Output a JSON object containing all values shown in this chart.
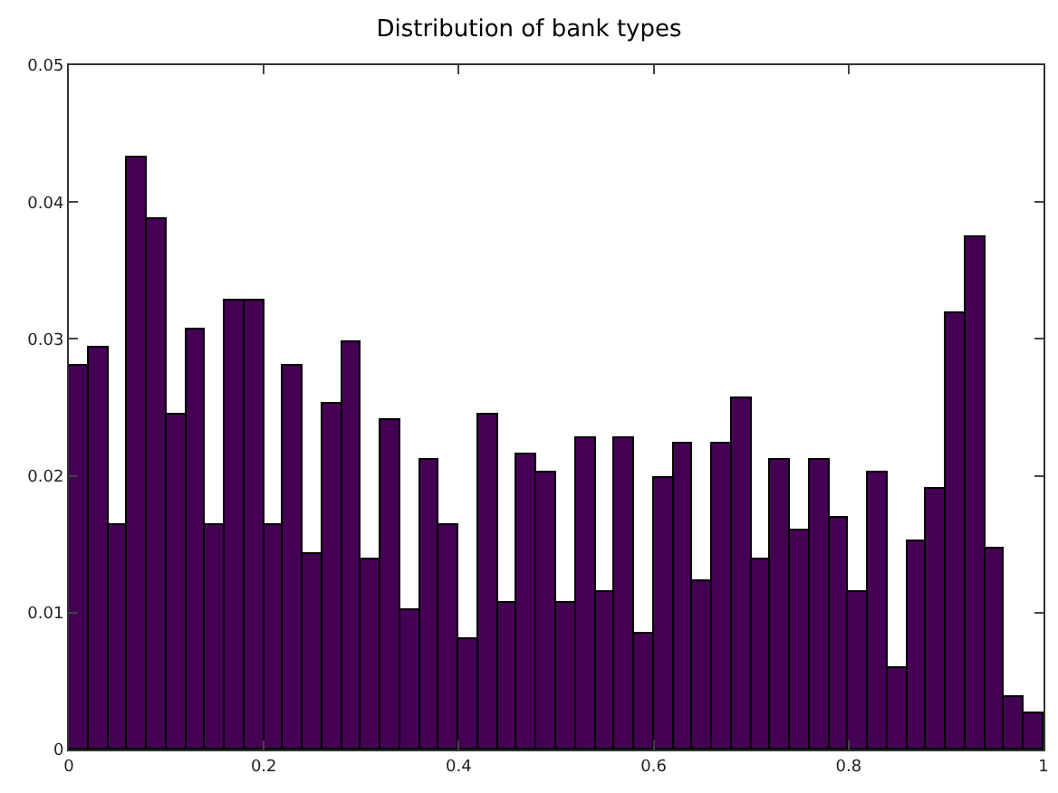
{
  "chart_data": {
    "type": "histogram",
    "title": "Distribution of bank types",
    "bins": [
      0,
      0.02,
      0.04,
      0.06,
      0.08,
      0.1,
      0.12,
      0.14,
      0.16,
      0.18,
      0.2,
      0.22,
      0.24,
      0.26,
      0.28,
      0.3,
      0.32,
      0.34,
      0.36,
      0.38,
      0.4,
      0.42,
      0.44,
      0.46,
      0.48,
      0.5,
      0.52,
      0.54,
      0.56,
      0.58,
      0.6,
      0.62,
      0.64,
      0.66,
      0.68,
      0.7,
      0.72,
      0.74,
      0.76,
      0.78,
      0.8,
      0.82,
      0.84,
      0.86,
      0.88,
      0.9,
      0.92,
      0.94,
      0.96,
      0.98,
      1
    ],
    "values": [
      0.028,
      0.0294,
      0.0164,
      0.0432,
      0.0387,
      0.0245,
      0.0307,
      0.0164,
      0.0328,
      0.0328,
      0.0164,
      0.0281,
      0.0143,
      0.0253,
      0.0298,
      0.0139,
      0.0241,
      0.0102,
      0.0211,
      0.0164,
      0.0081,
      0.0245,
      0.0107,
      0.0215,
      0.0202,
      0.0107,
      0.0227,
      0.0115,
      0.0227,
      0.0085,
      0.0198,
      0.0223,
      0.0123,
      0.0223,
      0.0257,
      0.0139,
      0.0211,
      0.016,
      0.0211,
      0.0169,
      0.0115,
      0.0202,
      0.006,
      0.0152,
      0.019,
      0.0319,
      0.0374,
      0.0147,
      0.0039,
      0.0026
    ],
    "color": "#440154",
    "xlim": [
      0,
      1
    ],
    "xticks": [
      0,
      0.2,
      0.4,
      0.6,
      0.8,
      1
    ],
    "ylim": [
      0,
      0.05
    ],
    "yticks": [
      0,
      0.01,
      0.02,
      0.03,
      0.04,
      0.05
    ],
    "grid": false,
    "legend": false
  }
}
